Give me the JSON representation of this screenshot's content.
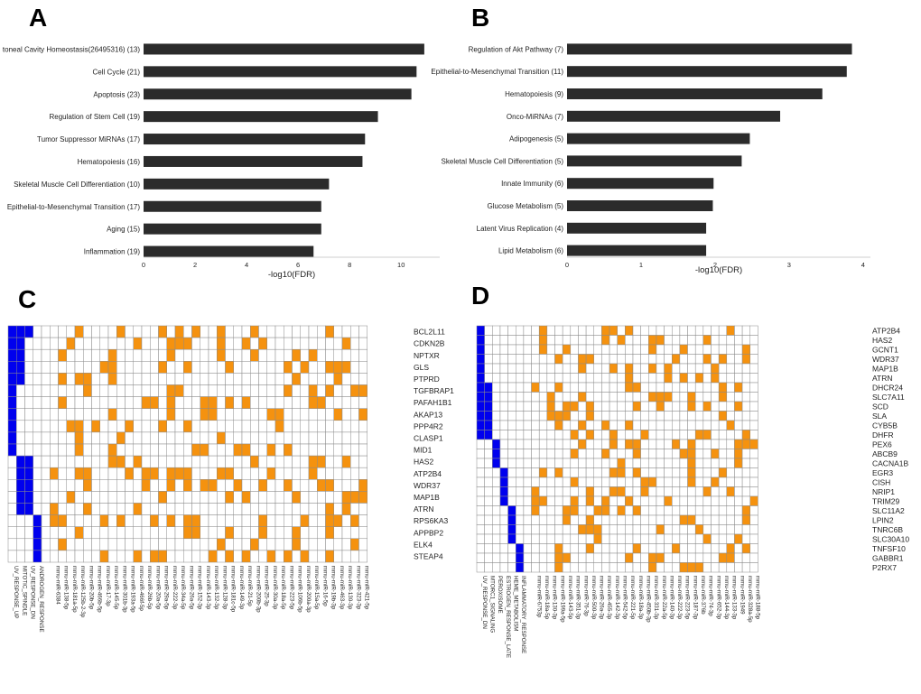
{
  "panels": {
    "A": "A",
    "B": "B",
    "C": "C",
    "D": "D"
  },
  "colors": {
    "bar": "#2b2b2b",
    "grid_cell": "#8a8a8a",
    "orange": "#f5920f",
    "blue": "#0000ee",
    "axis": "#cfcfcf",
    "text": "#222222"
  },
  "chart_data": [
    {
      "id": "A",
      "type": "bar",
      "orientation": "horizontal",
      "categories": [
        "toneal Cavity Homeostasis(26495316) (13)",
        "Cell Cycle (21)",
        "Apoptosis (23)",
        "Regulation of Stem Cell (19)",
        "Tumor Suppressor MiRNAs (17)",
        "Hematopoiesis (16)",
        "Skeletal Muscle Cell Differentiation (10)",
        "Epithelial-to-Mesenchymal Transition (17)",
        "Aging (15)",
        "Inflammation (19)"
      ],
      "values": [
        10.9,
        10.6,
        10.4,
        9.1,
        8.6,
        8.5,
        7.2,
        6.9,
        6.9,
        6.6
      ],
      "xlabel": "-log10(FDR)",
      "xlim": [
        0,
        11.5
      ],
      "xticks": [
        0,
        2,
        4,
        6,
        8,
        10
      ]
    },
    {
      "id": "B",
      "type": "bar",
      "orientation": "horizontal",
      "categories": [
        "Regulation of Akt Pathway (7)",
        "Epithelial-to-Mesenchymal Transition (11)",
        "Hematopoiesis (9)",
        "Onco-MiRNAs (7)",
        "Adipogenesis (5)",
        "Skeletal Muscle Cell Differentiation (5)",
        "Innate Immunity (6)",
        "Glucose Metabolism (5)",
        "Latent Virus Replication (4)",
        "Lipid Metabolism (6)"
      ],
      "values": [
        3.85,
        3.78,
        3.45,
        2.88,
        2.47,
        2.36,
        1.98,
        1.97,
        1.88,
        1.88
      ],
      "xlabel": "-log10(FDR)",
      "xlim": [
        0,
        4.1
      ],
      "xticks": [
        0,
        1,
        2,
        3,
        4
      ]
    },
    {
      "id": "C",
      "type": "heatmap",
      "rows": [
        "BCL2L11",
        "CDKN2B",
        "NPTXR",
        "GLS",
        "PTPRD",
        "TGFBRAP1",
        "PAFAH1B1",
        "AKAP13",
        "PPP4R2",
        "CLASP1",
        "MID1",
        "HAS2",
        "ATP2B4",
        "WDR37",
        "MAP1B",
        "ATRN",
        "RPS6KA3",
        "APPBP2",
        "ELK4",
        "STEAP4"
      ],
      "category_cols": [
        "UV_RESPONSE_UP",
        "MITOTIC_SPINDLE",
        "UV_RESPONSE_DN",
        "ANDROGEN_RESPONSE"
      ],
      "category_spans": [
        [
          0,
          1,
          0,
          5
        ],
        [
          1,
          1,
          0,
          5
        ],
        [
          2,
          1,
          0,
          1
        ],
        [
          0,
          1,
          5,
          11
        ],
        [
          1,
          1,
          11,
          16
        ],
        [
          2,
          1,
          11,
          16
        ],
        [
          3,
          1,
          16,
          20
        ]
      ],
      "mirna_cols": [
        "mmu-miR-6384",
        "mmu-miR-138-5p",
        "mmu-miR-181a-5p",
        "mmu-miR-125b-2-3p",
        "mmu-miR-20b-5p",
        "mmu-miR-466b-5p",
        "mmu-miR-17-3p",
        "mmu-miR-145-5p",
        "mmu-miR-301b-3p",
        "mmu-miR-193a-5p",
        "mmu-miR-466f-5p",
        "mmu-miR-26b-5p",
        "mmu-miR-20a-5p",
        "mmu-miR-29a-5p",
        "mmu-miR-222-3p",
        "mmu-miR-34a-5p",
        "mmu-miR-26a-5p",
        "mmu-miR-152-3p",
        "mmu-miR-143-3p",
        "mmu-miR-132-3p",
        "mmu-miR-128-3p",
        "mmu-miR-181c-5p",
        "mmu-miR-149-3p",
        "mmu-miR-21-5p",
        "mmu-miR-200b-3p",
        "mmu-miR-25-3p",
        "mmu-miR-30a-3p",
        "mmu-miR-18a-5p",
        "mmu-miR-223-5p",
        "mmu-miR-106b-5p",
        "mmu-miR-200a-3p",
        "mmu-miR-15a-5p",
        "mmu-miR-16-5p",
        "mmu-miR-19b-3p",
        "mmu-miR-463-3p",
        "mmu-miR-130-3p",
        "mmu-miR-323-3p",
        "mmu-miR-421-5p"
      ]
    },
    {
      "id": "D",
      "type": "heatmap",
      "rows": [
        "ATP2B4",
        "HAS2",
        "GCNT1",
        "WDR37",
        "MAP1B",
        "ATRN",
        "DHCR24",
        "SLC7A11",
        "SCD",
        "SLA",
        "CYB5B",
        "DHFR",
        "PEX6",
        "ABCB9",
        "CACNA1B",
        "EGR3",
        "CISH",
        "NRIP1",
        "TRIM29",
        "SLC11A2",
        "LPIN2",
        "TNRC6B",
        "SLC30A10",
        "TNFSF10",
        "GABBR1",
        "P2RX7"
      ],
      "category_cols": [
        "UV_RESPONSE_DN",
        "MTORC1_SIGNALING",
        "PEROXISOME",
        "ESTROGEN_RESPONSE_LATE",
        "HEME_METABOLISM",
        "INFLAMMATORY_RESPONSE"
      ],
      "category_spans": [
        [
          0,
          1,
          0,
          12
        ],
        [
          1,
          1,
          6,
          12
        ],
        [
          2,
          1,
          12,
          15
        ],
        [
          3,
          1,
          15,
          19
        ],
        [
          4,
          1,
          19,
          23
        ],
        [
          5,
          1,
          23,
          26
        ]
      ],
      "mirna_cols": [
        "mmu-miR-6753p",
        "mmu-miR-18a-5p",
        "mmu-miR-130-3p",
        "mmu-miR-199a-5p",
        "mmu-miR-143-5p",
        "mmu-miR-351-3p",
        "mmu-miR-76-3p",
        "mmu-miR-500-3p",
        "mmu-miR-26a-3p",
        "mmu-miR-455-3p",
        "mmu-miR-142-3p",
        "mmu-miR-542-5p",
        "mmu-miR-221-5p",
        "mmu-miR-18a-3p",
        "mmu-miR-450b-3p",
        "mmu-miR-331-3p",
        "mmu-miR-22a-5p",
        "mmu-miR-140-3p",
        "mmu-miR-222-3p",
        "mmu-miR-223-5p",
        "mmu-miR-187-3p",
        "mmu-miR-376b",
        "mmu-miR-74-3p",
        "mmu-miR-652-3p",
        "mmu-miR-144-3p",
        "mmu-miR-133-3p",
        "mmu-miR-1949",
        "mmu-miR-328a-5p",
        "mmu-miR-188-5p"
      ]
    }
  ]
}
